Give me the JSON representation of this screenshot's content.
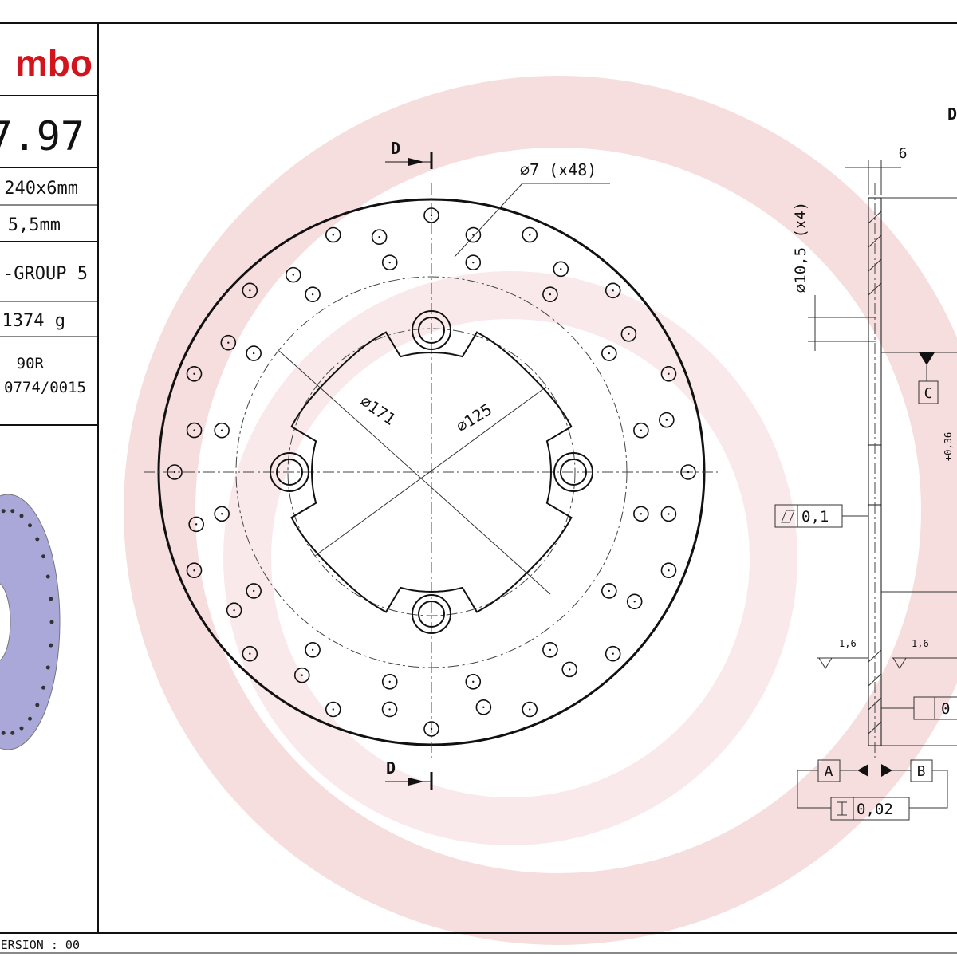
{
  "title_block": {
    "logo": "mbo",
    "code": "7.97",
    "rows": [
      "240x6mm",
      "5,5mm",
      "-GROUP 5",
      "1374 g"
    ],
    "approval": [
      "90R",
      "0774/0015"
    ],
    "version": "ERSION : 00"
  },
  "drawing": {
    "section_labels": [
      "D",
      "D",
      "D"
    ],
    "holes_note": "⌀7 (x48)",
    "thickness": "6",
    "bolt_note": "⌀10,5 (x4)",
    "diameter_outer": "⌀171",
    "diameter_inner": "⌀125",
    "datums": [
      "C",
      "A",
      "B"
    ],
    "flatness": "0,1",
    "roughness": [
      "1,6",
      "1,6"
    ],
    "runout": "0",
    "parallelism": "0,02",
    "tolerance": "+0,36"
  }
}
